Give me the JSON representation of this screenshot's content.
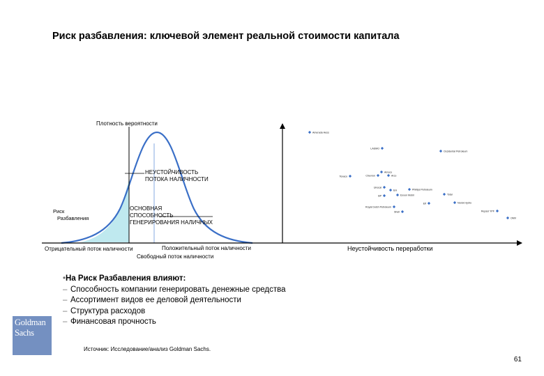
{
  "title": "Риск разбавления: ключевой элемент реальной стоимости капитала",
  "diagram": {
    "density_label": "Плотность вероятности",
    "unsustainable_cash_flow_label": [
      "НЕУСТОЙЧИВОСТЬ",
      "ПОТОКА НАЛИЧНОСТИ"
    ],
    "core_generation_label": [
      "ОСНОВНАЯ",
      "СПОСОБНОСТЬ",
      "ГЕНЕРИРОВАНИЯ НАЛИЧНЫХ"
    ],
    "dilution_risk_label": [
      "Риск",
      "Разбавления"
    ],
    "negative_cash_flow_label": "Отрицательный поток наличности",
    "positive_cash_flow_label": "Положительный поток наличности",
    "free_cash_flow_label": "Свободный поток наличности",
    "refining_instability_label": "Неустойчивость переработки",
    "companies": [
      {
        "name": "Amerada Hess"
      },
      {
        "name": "LASMO"
      },
      {
        "name": "Occidental Petroleum"
      },
      {
        "name": "Texaco"
      },
      {
        "name": "Chevron"
      },
      {
        "name": "Amoco"
      },
      {
        "name": "Arco"
      },
      {
        "name": "Unocal"
      },
      {
        "name": "Eni"
      },
      {
        "name": "Phillips Petroleum"
      },
      {
        "name": "Total"
      },
      {
        "name": "BP"
      },
      {
        "name": "Exxon Mobil"
      },
      {
        "name": "Elf"
      },
      {
        "name": "Norsk Hydro"
      },
      {
        "name": "Royal Dutch Petroleum"
      },
      {
        "name": "Shell"
      },
      {
        "name": "Repsol YPF"
      },
      {
        "name": "OMV"
      }
    ]
  },
  "influence": {
    "heading": "На Риск Разбавления влияют:",
    "items": [
      "Способность компании генерировать денежные средства",
      "Ассортимент видов ее деловой деятельности",
      "Структура расходов",
      "Финансовая прочность"
    ]
  },
  "logo": {
    "line1": "Goldman",
    "line2": "Sachs",
    "color": "#7490c1"
  },
  "source": "Источник: Исследование/анализ Goldman Sachs.",
  "page_number": "61",
  "colors": {
    "curve": "#3a6fc7",
    "marker": "#3a6fc7",
    "shade": "#bfe9ef",
    "mean_line": "#9ab8e6"
  }
}
